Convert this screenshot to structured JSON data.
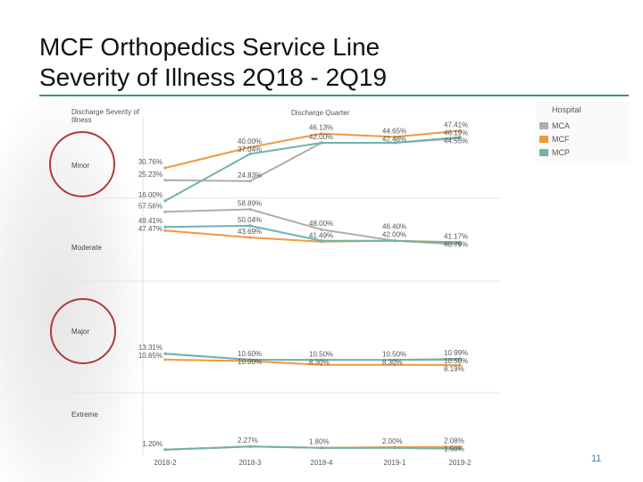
{
  "title_line1": "MCF Orthopedics Service Line",
  "title_line2": "Severity of Illness   2Q18 - 2Q19",
  "page_number": "11",
  "header_left": "Discharge Severity of Illness",
  "header_center": "Discharge Quarter",
  "legend": {
    "title": "Hospital",
    "items": [
      {
        "label": "MCA",
        "color": "#b3aca8"
      },
      {
        "label": "MCF",
        "color": "#f09a3c"
      },
      {
        "label": "MCP",
        "color": "#6fb3b0"
      }
    ]
  },
  "annotation_color": "#b03a3a",
  "chart_data": {
    "type": "line",
    "x": [
      "2018-2",
      "2018-3",
      "2018-4",
      "2019-1",
      "2019-2"
    ],
    "panels": [
      {
        "category": "Minor",
        "series": [
          {
            "name": "MCA",
            "color": "#b3aca8",
            "values": [
              25.23,
              24.83,
              42.0,
              42.0,
              44.0
            ]
          },
          {
            "name": "MCF",
            "color": "#f09a3c",
            "values": [
              30.76,
              40.0,
              46.13,
              44.65,
              47.41
            ]
          },
          {
            "name": "MCP",
            "color": "#6fb3b0",
            "values": [
              16.0,
              37.04,
              42.0,
              42.0,
              44.55
            ]
          }
        ],
        "labels": [
          {
            "text": "30.76%",
            "xi": 0,
            "v": 30.76
          },
          {
            "text": "16.00%",
            "xi": 0,
            "v": 16.0
          },
          {
            "text": "25.23%",
            "xi": 0,
            "v": 25.23
          },
          {
            "text": "40.00%",
            "xi": 1,
            "v": 40.0
          },
          {
            "text": "37.04%",
            "xi": 1,
            "v": 37.04
          },
          {
            "text": "24.83%",
            "xi": 1,
            "v": 24.83
          },
          {
            "text": "46.13%",
            "xi": 2,
            "v": 46.13
          },
          {
            "text": "42.00%",
            "xi": 2,
            "v": 42.0
          },
          {
            "text": "44.65%",
            "xi": 3,
            "v": 44.65
          },
          {
            "text": "42.48%",
            "xi": 3,
            "v": 42.48
          },
          {
            "text": "47.41%",
            "xi": 4,
            "v": 47.41
          },
          {
            "text": "46.19%",
            "xi": 4,
            "v": 46.19
          },
          {
            "text": "44.55%",
            "xi": 4,
            "v": 44.55
          }
        ]
      },
      {
        "category": "Moderate",
        "series": [
          {
            "name": "MCA",
            "color": "#b3aca8",
            "values": [
              57.56,
              58.89,
              48.0,
              42.0,
              40.0
            ]
          },
          {
            "name": "MCF",
            "color": "#f09a3c",
            "values": [
              47.47,
              43.69,
              41.49,
              42.0,
              41.17
            ]
          },
          {
            "name": "MCP",
            "color": "#6fb3b0",
            "values": [
              49.41,
              50.04,
              42.0,
              42.0,
              40.79
            ]
          }
        ],
        "labels": [
          {
            "text": "57.56%",
            "xi": 0,
            "v": 57.56
          },
          {
            "text": "49.41%",
            "xi": 0,
            "v": 49.41
          },
          {
            "text": "47.47%",
            "xi": 0,
            "v": 47.47
          },
          {
            "text": "58.89%",
            "xi": 1,
            "v": 58.89
          },
          {
            "text": "50.04%",
            "xi": 1,
            "v": 50.04
          },
          {
            "text": "43.69%",
            "xi": 1,
            "v": 43.69
          },
          {
            "text": "48.00%",
            "xi": 2,
            "v": 48.0
          },
          {
            "text": "41.49%",
            "xi": 2,
            "v": 41.49
          },
          {
            "text": "46.40%",
            "xi": 3,
            "v": 46.4
          },
          {
            "text": "42.00%",
            "xi": 3,
            "v": 42.0
          },
          {
            "text": "41.17%",
            "xi": 4,
            "v": 41.17
          },
          {
            "text": "40.79%",
            "xi": 4,
            "v": 40.79
          }
        ]
      },
      {
        "category": "Major",
        "series": [
          {
            "name": "MCA",
            "color": "#b3aca8",
            "values": [
              13.31,
              10.6,
              10.5,
              10.5,
              10.5
            ]
          },
          {
            "name": "MCF",
            "color": "#f09a3c",
            "values": [
              10.65,
              10.0,
              8.3,
              8.3,
              8.19
            ]
          },
          {
            "name": "MCP",
            "color": "#6fb3b0",
            "values": [
              13.31,
              10.6,
              10.5,
              10.5,
              10.99
            ]
          }
        ],
        "labels": [
          {
            "text": "13.31%",
            "xi": 0,
            "v": 13.31
          },
          {
            "text": "10.65%",
            "xi": 0,
            "v": 10.65
          },
          {
            "text": "10.60%",
            "xi": 1,
            "v": 10.6
          },
          {
            "text": "10.00%",
            "xi": 1,
            "v": 10.0
          },
          {
            "text": "10.50%",
            "xi": 2,
            "v": 10.5
          },
          {
            "text": "8.30%",
            "xi": 2,
            "v": 8.3
          },
          {
            "text": "10.50%",
            "xi": 3,
            "v": 10.5
          },
          {
            "text": "8.30%",
            "xi": 3,
            "v": 8.3
          },
          {
            "text": "10.99%",
            "xi": 4,
            "v": 10.99
          },
          {
            "text": "10.50%",
            "xi": 4,
            "v": 10.5
          },
          {
            "text": "8.19%",
            "xi": 4,
            "v": 8.19
          }
        ]
      },
      {
        "category": "Extreme",
        "series": [
          {
            "name": "MCA",
            "color": "#b3aca8",
            "values": [
              1.2,
              2.2,
              1.8,
              1.8,
              1.5
            ]
          },
          {
            "name": "MCF",
            "color": "#f09a3c",
            "values": [
              1.2,
              2.27,
              1.8,
              2.0,
              2.08
            ]
          },
          {
            "name": "MCP",
            "color": "#6fb3b0",
            "values": [
              1.2,
              2.2,
              1.8,
              1.8,
              1.5
            ]
          }
        ],
        "labels": [
          {
            "text": "1.20%",
            "xi": 0,
            "v": 1.2
          },
          {
            "text": "2.27%",
            "xi": 1,
            "v": 2.27
          },
          {
            "text": "1.80%",
            "xi": 2,
            "v": 1.8
          },
          {
            "text": "2.00%",
            "xi": 3,
            "v": 2.0
          },
          {
            "text": "2.08%",
            "xi": 4,
            "v": 2.08
          },
          {
            "text": "1.50%",
            "xi": 4,
            "v": 1.5
          }
        ]
      }
    ]
  }
}
